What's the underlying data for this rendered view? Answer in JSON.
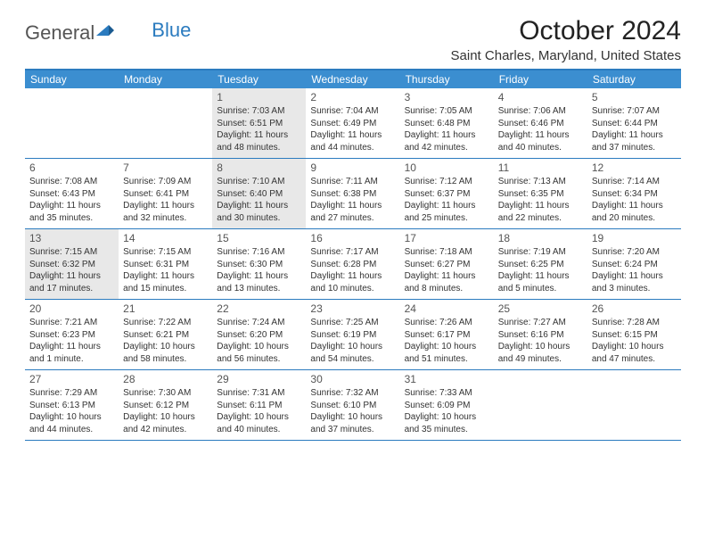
{
  "logo": {
    "text1": "General",
    "text2": "Blue"
  },
  "title": "October 2024",
  "location": "Saint Charles, Maryland, United States",
  "colors": {
    "header_bg": "#3b8ed0",
    "border": "#2b7bbf",
    "shaded_bg": "#e8e8e8",
    "text": "#333333"
  },
  "day_headers": [
    "Sunday",
    "Monday",
    "Tuesday",
    "Wednesday",
    "Thursday",
    "Friday",
    "Saturday"
  ],
  "weeks": [
    [
      {
        "num": "",
        "sunrise": "",
        "sunset": "",
        "daylight": "",
        "shaded": false
      },
      {
        "num": "",
        "sunrise": "",
        "sunset": "",
        "daylight": "",
        "shaded": false
      },
      {
        "num": "1",
        "sunrise": "Sunrise: 7:03 AM",
        "sunset": "Sunset: 6:51 PM",
        "daylight": "Daylight: 11 hours and 48 minutes.",
        "shaded": true
      },
      {
        "num": "2",
        "sunrise": "Sunrise: 7:04 AM",
        "sunset": "Sunset: 6:49 PM",
        "daylight": "Daylight: 11 hours and 44 minutes.",
        "shaded": false
      },
      {
        "num": "3",
        "sunrise": "Sunrise: 7:05 AM",
        "sunset": "Sunset: 6:48 PM",
        "daylight": "Daylight: 11 hours and 42 minutes.",
        "shaded": false
      },
      {
        "num": "4",
        "sunrise": "Sunrise: 7:06 AM",
        "sunset": "Sunset: 6:46 PM",
        "daylight": "Daylight: 11 hours and 40 minutes.",
        "shaded": false
      },
      {
        "num": "5",
        "sunrise": "Sunrise: 7:07 AM",
        "sunset": "Sunset: 6:44 PM",
        "daylight": "Daylight: 11 hours and 37 minutes.",
        "shaded": false
      }
    ],
    [
      {
        "num": "6",
        "sunrise": "Sunrise: 7:08 AM",
        "sunset": "Sunset: 6:43 PM",
        "daylight": "Daylight: 11 hours and 35 minutes.",
        "shaded": false
      },
      {
        "num": "7",
        "sunrise": "Sunrise: 7:09 AM",
        "sunset": "Sunset: 6:41 PM",
        "daylight": "Daylight: 11 hours and 32 minutes.",
        "shaded": false
      },
      {
        "num": "8",
        "sunrise": "Sunrise: 7:10 AM",
        "sunset": "Sunset: 6:40 PM",
        "daylight": "Daylight: 11 hours and 30 minutes.",
        "shaded": true
      },
      {
        "num": "9",
        "sunrise": "Sunrise: 7:11 AM",
        "sunset": "Sunset: 6:38 PM",
        "daylight": "Daylight: 11 hours and 27 minutes.",
        "shaded": false
      },
      {
        "num": "10",
        "sunrise": "Sunrise: 7:12 AM",
        "sunset": "Sunset: 6:37 PM",
        "daylight": "Daylight: 11 hours and 25 minutes.",
        "shaded": false
      },
      {
        "num": "11",
        "sunrise": "Sunrise: 7:13 AM",
        "sunset": "Sunset: 6:35 PM",
        "daylight": "Daylight: 11 hours and 22 minutes.",
        "shaded": false
      },
      {
        "num": "12",
        "sunrise": "Sunrise: 7:14 AM",
        "sunset": "Sunset: 6:34 PM",
        "daylight": "Daylight: 11 hours and 20 minutes.",
        "shaded": false
      }
    ],
    [
      {
        "num": "13",
        "sunrise": "Sunrise: 7:15 AM",
        "sunset": "Sunset: 6:32 PM",
        "daylight": "Daylight: 11 hours and 17 minutes.",
        "shaded": true
      },
      {
        "num": "14",
        "sunrise": "Sunrise: 7:15 AM",
        "sunset": "Sunset: 6:31 PM",
        "daylight": "Daylight: 11 hours and 15 minutes.",
        "shaded": false
      },
      {
        "num": "15",
        "sunrise": "Sunrise: 7:16 AM",
        "sunset": "Sunset: 6:30 PM",
        "daylight": "Daylight: 11 hours and 13 minutes.",
        "shaded": false
      },
      {
        "num": "16",
        "sunrise": "Sunrise: 7:17 AM",
        "sunset": "Sunset: 6:28 PM",
        "daylight": "Daylight: 11 hours and 10 minutes.",
        "shaded": false
      },
      {
        "num": "17",
        "sunrise": "Sunrise: 7:18 AM",
        "sunset": "Sunset: 6:27 PM",
        "daylight": "Daylight: 11 hours and 8 minutes.",
        "shaded": false
      },
      {
        "num": "18",
        "sunrise": "Sunrise: 7:19 AM",
        "sunset": "Sunset: 6:25 PM",
        "daylight": "Daylight: 11 hours and 5 minutes.",
        "shaded": false
      },
      {
        "num": "19",
        "sunrise": "Sunrise: 7:20 AM",
        "sunset": "Sunset: 6:24 PM",
        "daylight": "Daylight: 11 hours and 3 minutes.",
        "shaded": false
      }
    ],
    [
      {
        "num": "20",
        "sunrise": "Sunrise: 7:21 AM",
        "sunset": "Sunset: 6:23 PM",
        "daylight": "Daylight: 11 hours and 1 minute.",
        "shaded": false
      },
      {
        "num": "21",
        "sunrise": "Sunrise: 7:22 AM",
        "sunset": "Sunset: 6:21 PM",
        "daylight": "Daylight: 10 hours and 58 minutes.",
        "shaded": false
      },
      {
        "num": "22",
        "sunrise": "Sunrise: 7:24 AM",
        "sunset": "Sunset: 6:20 PM",
        "daylight": "Daylight: 10 hours and 56 minutes.",
        "shaded": false
      },
      {
        "num": "23",
        "sunrise": "Sunrise: 7:25 AM",
        "sunset": "Sunset: 6:19 PM",
        "daylight": "Daylight: 10 hours and 54 minutes.",
        "shaded": false
      },
      {
        "num": "24",
        "sunrise": "Sunrise: 7:26 AM",
        "sunset": "Sunset: 6:17 PM",
        "daylight": "Daylight: 10 hours and 51 minutes.",
        "shaded": false
      },
      {
        "num": "25",
        "sunrise": "Sunrise: 7:27 AM",
        "sunset": "Sunset: 6:16 PM",
        "daylight": "Daylight: 10 hours and 49 minutes.",
        "shaded": false
      },
      {
        "num": "26",
        "sunrise": "Sunrise: 7:28 AM",
        "sunset": "Sunset: 6:15 PM",
        "daylight": "Daylight: 10 hours and 47 minutes.",
        "shaded": false
      }
    ],
    [
      {
        "num": "27",
        "sunrise": "Sunrise: 7:29 AM",
        "sunset": "Sunset: 6:13 PM",
        "daylight": "Daylight: 10 hours and 44 minutes.",
        "shaded": false
      },
      {
        "num": "28",
        "sunrise": "Sunrise: 7:30 AM",
        "sunset": "Sunset: 6:12 PM",
        "daylight": "Daylight: 10 hours and 42 minutes.",
        "shaded": false
      },
      {
        "num": "29",
        "sunrise": "Sunrise: 7:31 AM",
        "sunset": "Sunset: 6:11 PM",
        "daylight": "Daylight: 10 hours and 40 minutes.",
        "shaded": false
      },
      {
        "num": "30",
        "sunrise": "Sunrise: 7:32 AM",
        "sunset": "Sunset: 6:10 PM",
        "daylight": "Daylight: 10 hours and 37 minutes.",
        "shaded": false
      },
      {
        "num": "31",
        "sunrise": "Sunrise: 7:33 AM",
        "sunset": "Sunset: 6:09 PM",
        "daylight": "Daylight: 10 hours and 35 minutes.",
        "shaded": false
      },
      {
        "num": "",
        "sunrise": "",
        "sunset": "",
        "daylight": "",
        "shaded": false
      },
      {
        "num": "",
        "sunrise": "",
        "sunset": "",
        "daylight": "",
        "shaded": false
      }
    ]
  ]
}
